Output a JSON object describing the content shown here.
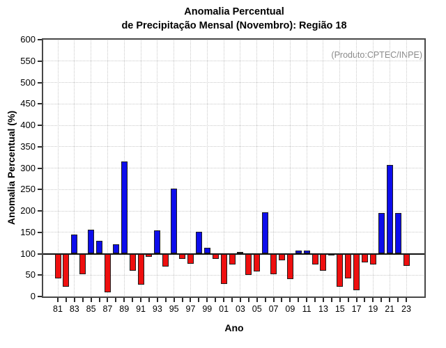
{
  "title": {
    "line1": "Anomalia Percentual",
    "line2": "de Precipitação Mensal (Novembro): Região 18"
  },
  "note": "(Produto:CPTEC/INPE)",
  "chart_data": {
    "type": "bar",
    "title": "Anomalia Percentual de Precipitação Mensal (Novembro): Região 18",
    "xlabel": "Ano",
    "ylabel": "Anomalia Percentual (%)",
    "ylim": [
      0,
      600
    ],
    "ytick_step": 50,
    "baseline": 100,
    "grid": true,
    "legend": "none",
    "bar_color_above_baseline": "#0d0deb",
    "bar_color_below_baseline": "#ee0f0f",
    "grid_color": "#c9c9c9",
    "note_color": "#8a8a8a",
    "x_tick_labels": [
      "81",
      "83",
      "85",
      "87",
      "89",
      "91",
      "93",
      "95",
      "97",
      "99",
      "01",
      "03",
      "05",
      "07",
      "09",
      "11",
      "13",
      "15",
      "17",
      "19",
      "21",
      "23"
    ],
    "years": [
      1981,
      1982,
      1983,
      1984,
      1985,
      1986,
      1987,
      1988,
      1989,
      1990,
      1991,
      1992,
      1993,
      1994,
      1995,
      1996,
      1997,
      1998,
      1999,
      2000,
      2001,
      2002,
      2003,
      2004,
      2005,
      2006,
      2007,
      2008,
      2009,
      2010,
      2011,
      2012,
      2013,
      2014,
      2015,
      2016,
      2017,
      2018,
      2019,
      2020,
      2021,
      2022,
      2023
    ],
    "values": [
      42,
      23,
      145,
      52,
      156,
      130,
      10,
      122,
      315,
      60,
      28,
      93,
      155,
      70,
      252,
      88,
      76,
      152,
      114,
      88,
      30,
      75,
      104,
      50,
      58,
      197,
      52,
      84,
      40,
      108,
      108,
      75,
      60,
      97,
      22,
      42,
      15,
      80,
      75,
      195,
      308,
      195,
      72
    ]
  }
}
